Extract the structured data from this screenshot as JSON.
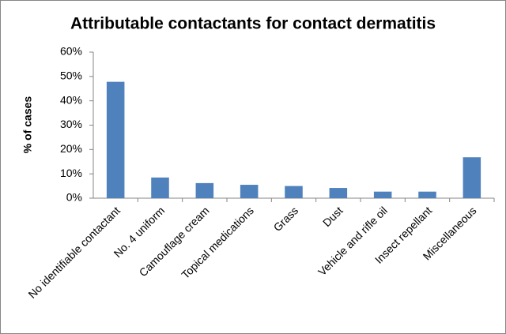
{
  "chart_data": {
    "type": "bar",
    "title": "Attributable contactants for contact dermatitis",
    "y_label": "% of cases",
    "categories": [
      "No identifiable contactant",
      "No. 4 uniform",
      "Camouflage cream",
      "Topical medications",
      "Grass",
      "Dust",
      "Vehicle and rifle oil",
      "Insect repellant",
      "Miscellaneous"
    ],
    "values": [
      47.8,
      8.5,
      6.2,
      5.5,
      5,
      4.2,
      2.7,
      2.7,
      16.8
    ],
    "color": "#4f81bd",
    "ylim": [
      0,
      60
    ],
    "yticks": [
      {
        "value": 0,
        "label": "0%"
      },
      {
        "value": 10,
        "label": "10%"
      },
      {
        "value": 20,
        "label": "20%"
      },
      {
        "value": 30,
        "label": "30%"
      },
      {
        "value": 40,
        "label": "40%"
      },
      {
        "value": 50,
        "label": "50%"
      },
      {
        "value": 60,
        "label": "60%"
      }
    ],
    "grid": false
  }
}
